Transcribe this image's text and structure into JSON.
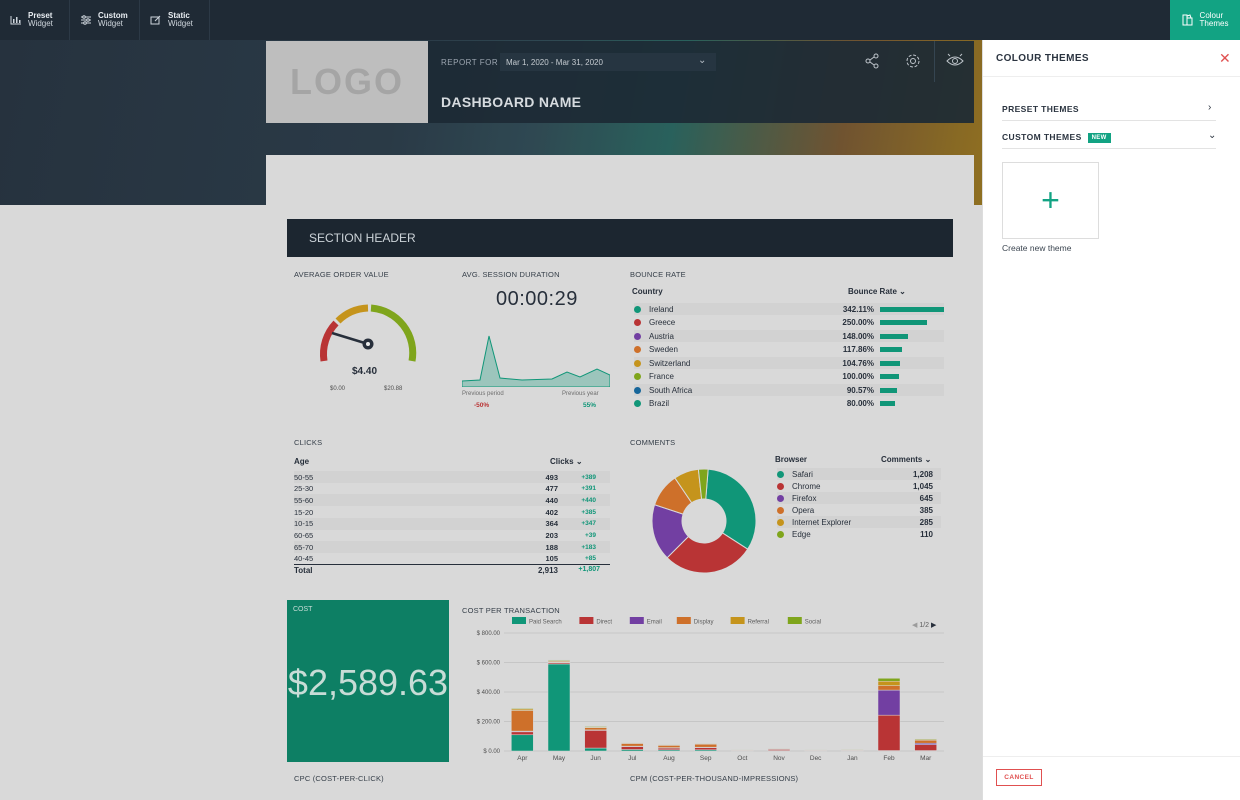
{
  "topbar": {
    "items": [
      {
        "l1": "Preset",
        "l2": "Widget"
      },
      {
        "l1": "Custom",
        "l2": "Widget"
      },
      {
        "l1": "Static",
        "l2": "Widget"
      }
    ],
    "theme_l1": "Colour",
    "theme_l2": "Themes"
  },
  "header": {
    "logo": "LOGO",
    "report_for": "REPORT FOR",
    "date_range": "Mar 1, 2020 - Mar 31, 2020",
    "dashboard_name": "DASHBOARD NAME"
  },
  "section_header": "SECTION HEADER",
  "aov": {
    "title": "AVERAGE ORDER VALUE",
    "value": "$4.40",
    "min": "$0.00",
    "max": "$20.88"
  },
  "session": {
    "title": "AVG. SESSION DURATION",
    "value": "00:00:29",
    "prev_label": "Previous period",
    "prev_value": "-50%",
    "year_label": "Previous year",
    "year_value": "55%"
  },
  "bounce": {
    "title": "BOUNCE RATE",
    "col1": "Country",
    "col2": "Bounce Rate",
    "rows": [
      {
        "name": "Ireland",
        "value": "342.11%",
        "color": "#12a383",
        "pct": 1.0
      },
      {
        "name": "Greece",
        "value": "250.00%",
        "color": "#c9393a",
        "pct": 0.73
      },
      {
        "name": "Austria",
        "value": "148.00%",
        "color": "#7c45b0",
        "pct": 0.43
      },
      {
        "name": "Sweden",
        "value": "117.86%",
        "color": "#e07a2e",
        "pct": 0.34
      },
      {
        "name": "Switzerland",
        "value": "104.76%",
        "color": "#d6a11f",
        "pct": 0.31
      },
      {
        "name": "France",
        "value": "100.00%",
        "color": "#8ab31f",
        "pct": 0.29
      },
      {
        "name": "South Africa",
        "value": "90.57%",
        "color": "#1a6fa8",
        "pct": 0.26
      },
      {
        "name": "Brazil",
        "value": "80.00%",
        "color": "#12a383",
        "pct": 0.23
      }
    ]
  },
  "clicks": {
    "title": "CLICKS",
    "col1": "Age",
    "col2": "Clicks",
    "rows": [
      {
        "age": "50-55",
        "clicks": "493",
        "delta": "+389"
      },
      {
        "age": "25-30",
        "clicks": "477",
        "delta": "+391"
      },
      {
        "age": "55-60",
        "clicks": "440",
        "delta": "+440"
      },
      {
        "age": "15-20",
        "clicks": "402",
        "delta": "+385"
      },
      {
        "age": "10-15",
        "clicks": "364",
        "delta": "+347"
      },
      {
        "age": "60-65",
        "clicks": "203",
        "delta": "+39"
      },
      {
        "age": "65-70",
        "clicks": "188",
        "delta": "+183"
      },
      {
        "age": "40-45",
        "clicks": "105",
        "delta": "+85"
      }
    ],
    "total_label": "Total",
    "total": "2,913",
    "total_delta": "+1,807"
  },
  "comments": {
    "title": "COMMENTS",
    "col1": "Browser",
    "col2": "Comments",
    "rows": [
      {
        "name": "Safari",
        "value": "1,208",
        "color": "#12a383",
        "v": 1208
      },
      {
        "name": "Chrome",
        "value": "1,045",
        "color": "#c9393a",
        "v": 1045
      },
      {
        "name": "Firefox",
        "value": "645",
        "color": "#7c45b0",
        "v": 645
      },
      {
        "name": "Opera",
        "value": "385",
        "color": "#e07a2e",
        "v": 385
      },
      {
        "name": "Internet Explorer",
        "value": "285",
        "color": "#d6a11f",
        "v": 285
      },
      {
        "name": "Edge",
        "value": "110",
        "color": "#8ab31f",
        "v": 110
      }
    ]
  },
  "cost": {
    "title": "COST",
    "value": "$2,589.63"
  },
  "cpt": {
    "title": "COST PER TRANSACTION",
    "pager": "1/2"
  },
  "cpc": {
    "title": "CPC (COST-PER-CLICK)"
  },
  "cpm": {
    "title": "CPM (COST-PER-THOUSAND-IMPRESSIONS)"
  },
  "panel": {
    "title": "COLOUR THEMES",
    "preset": "PRESET THEMES",
    "custom": "CUSTOM THEMES",
    "new_badge": "NEW",
    "create": "Create new theme",
    "cancel": "CANCEL"
  },
  "chart_data": {
    "type": "bar",
    "stacked": true,
    "categories": [
      "Apr",
      "May",
      "Jun",
      "Jul",
      "Aug",
      "Sep",
      "Oct",
      "Nov",
      "Dec",
      "Jan",
      "Feb",
      "Mar"
    ],
    "yticks": [
      "$ 0.00",
      "$ 200.00",
      "$ 400.00",
      "$ 600.00",
      "$ 800.00"
    ],
    "ylim": [
      0,
      800
    ],
    "series": [
      {
        "name": "Paid Search",
        "color": "#12a383",
        "values": [
          110,
          590,
          20,
          10,
          8,
          8,
          3,
          3,
          3,
          3,
          3,
          3
        ]
      },
      {
        "name": "Direct",
        "color": "#c9393a",
        "values": [
          20,
          8,
          120,
          20,
          12,
          15,
          2,
          8,
          2,
          2,
          240,
          40
        ]
      },
      {
        "name": "Email",
        "color": "#7c45b0",
        "values": [
          5,
          3,
          3,
          3,
          3,
          3,
          1,
          1,
          1,
          1,
          170,
          10
        ]
      },
      {
        "name": "Display",
        "color": "#e07a2e",
        "values": [
          140,
          6,
          15,
          18,
          15,
          20,
          2,
          3,
          2,
          3,
          30,
          20
        ]
      },
      {
        "name": "Referral",
        "color": "#d6a11f",
        "values": [
          10,
          5,
          5,
          4,
          4,
          4,
          1,
          1,
          1,
          1,
          30,
          5
        ]
      },
      {
        "name": "Social",
        "color": "#8ab31f",
        "values": [
          5,
          5,
          5,
          3,
          3,
          3,
          1,
          1,
          1,
          1,
          20,
          5
        ]
      }
    ]
  }
}
